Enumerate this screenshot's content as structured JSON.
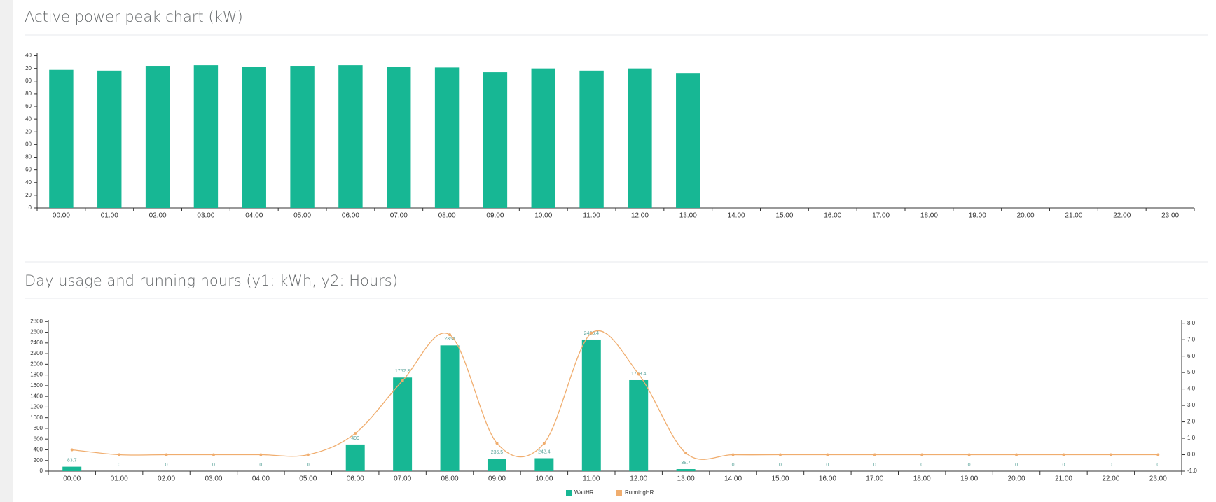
{
  "chart_data": [
    {
      "type": "bar",
      "title": "Active power peak chart (kW)",
      "categories": [
        "00:00",
        "01:00",
        "02:00",
        "03:00",
        "04:00",
        "05:00",
        "06:00",
        "07:00",
        "08:00",
        "09:00",
        "10:00",
        "11:00",
        "12:00",
        "13:00",
        "14:00",
        "15:00",
        "16:00",
        "17:00",
        "18:00",
        "19:00",
        "20:00",
        "21:00",
        "22:00",
        "23:00"
      ],
      "values": [
        217.7,
        216.5,
        224,
        225,
        222.7,
        224,
        225,
        222.7,
        221.4,
        214,
        220,
        216.5,
        220,
        212.8,
        null,
        null,
        null,
        null,
        null,
        null,
        null,
        null,
        null,
        null
      ],
      "color": "#17b794",
      "ylim": [
        0,
        245
      ],
      "yticks": [
        0,
        {
          "value": 20,
          "label": "20"
        },
        {
          "value": 40,
          "label": "40"
        },
        {
          "value": 60,
          "label": "60"
        },
        {
          "value": 80,
          "label": "80"
        },
        {
          "value": 100,
          "label": "00"
        },
        {
          "value": 120,
          "label": "20"
        },
        {
          "value": 140,
          "label": "40"
        },
        {
          "value": 160,
          "label": "60"
        },
        {
          "value": 180,
          "label": "80"
        },
        {
          "value": 200,
          "label": "00"
        },
        {
          "value": 220,
          "label": "20"
        },
        {
          "value": 240,
          "label": "40"
        }
      ]
    },
    {
      "type": "bar",
      "title": "Day usage and running hours (y1: kWh, y2: Hours)",
      "categories": [
        "00:00",
        "01:00",
        "02:00",
        "03:00",
        "04:00",
        "05:00",
        "06:00",
        "07:00",
        "08:00",
        "09:00",
        "10:00",
        "11:00",
        "12:00",
        "13:00",
        "14:00",
        "15:00",
        "16:00",
        "17:00",
        "18:00",
        "19:00",
        "20:00",
        "21:00",
        "22:00",
        "23:00"
      ],
      "series": [
        {
          "name": "WattHR",
          "color": "#17b794",
          "values": [
            83.7,
            0,
            0,
            0,
            0,
            0,
            499,
            1752.3,
            2354,
            235.5,
            242.4,
            2463.4,
            1703.4,
            38.7,
            0,
            0,
            0,
            0,
            0,
            0,
            0,
            0,
            0,
            0
          ]
        },
        {
          "name": "RunningHR",
          "color": "#f0ad6e",
          "type": "line",
          "axis": "y2",
          "values": [
            0.3,
            0,
            0,
            0,
            0,
            0,
            1.3,
            4.5,
            7.3,
            0.7,
            0.7,
            7.4,
            4.9,
            0.1,
            0,
            0,
            0,
            0,
            0,
            0,
            0,
            0,
            0,
            0
          ]
        }
      ],
      "ylim": [
        0,
        2830
      ],
      "yticks": [
        0,
        200,
        400,
        600,
        800,
        1000,
        1200,
        1400,
        1600,
        1800,
        2000,
        2200,
        2400,
        2600,
        2800
      ],
      "y2lim": [
        -1,
        8.2
      ],
      "y2ticks": [
        {
          "value": -1,
          "label": "-1.0"
        },
        {
          "value": 0,
          "label": "0.0"
        },
        {
          "value": 1,
          "label": "1.0"
        },
        {
          "value": 2,
          "label": "2.0"
        },
        {
          "value": 3,
          "label": "3.0"
        },
        {
          "value": 4,
          "label": "4.0"
        },
        {
          "value": 5,
          "label": "5.0"
        },
        {
          "value": 6,
          "label": "6.0"
        },
        {
          "value": 7,
          "label": "7.0"
        },
        {
          "value": 8,
          "label": "8.0"
        }
      ],
      "legend": "bottom"
    }
  ]
}
